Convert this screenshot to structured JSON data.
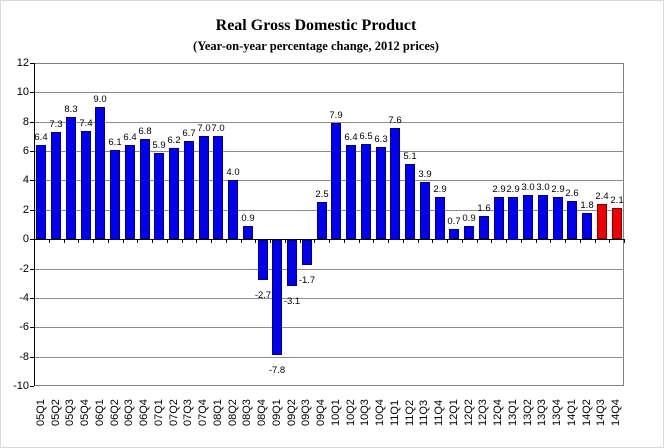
{
  "chart_data": {
    "type": "bar",
    "title": "Real Gross Domestic Product",
    "subtitle": "(Year-on-year percentage change, 2012 prices)",
    "categories": [
      "05Q1",
      "05Q2",
      "05Q3",
      "05Q4",
      "06Q1",
      "06Q2",
      "06Q3",
      "06Q4",
      "07Q1",
      "07Q2",
      "07Q3",
      "07Q4",
      "08Q1",
      "08Q2",
      "08Q3",
      "08Q4",
      "09Q1",
      "09Q2",
      "09Q3",
      "09Q4",
      "10Q1",
      "10Q2",
      "10Q3",
      "10Q4",
      "11Q1",
      "11Q2",
      "11Q3",
      "11Q4",
      "12Q1",
      "12Q2",
      "12Q3",
      "12Q4",
      "13Q1",
      "13Q2",
      "13Q3",
      "13Q4",
      "14Q1",
      "14Q2",
      "14Q3",
      "14Q4"
    ],
    "values": [
      6.4,
      7.3,
      8.3,
      7.4,
      9.0,
      6.1,
      6.4,
      6.8,
      5.9,
      6.2,
      6.7,
      7.0,
      7.0,
      4.0,
      0.9,
      -2.7,
      -7.8,
      -3.1,
      -1.7,
      2.5,
      7.9,
      6.4,
      6.5,
      6.3,
      7.6,
      5.1,
      3.9,
      2.9,
      0.7,
      0.9,
      1.6,
      2.9,
      2.9,
      3.0,
      3.0,
      2.9,
      2.6,
      1.8,
      2.4,
      2.1
    ],
    "value_labels": [
      "6.4",
      "7.3",
      "8.3",
      "7.4",
      "9.0",
      "6.1",
      "6.4",
      "6.8",
      "5.9",
      "6.2",
      "6.7",
      "7.0",
      "7.0",
      "4.0",
      "0.9",
      "-2.7",
      "-7.8",
      "-3.1",
      "-1.7",
      "2.5",
      "7.9",
      "6.4",
      "6.5",
      "6.3",
      "7.6",
      "5.1",
      "3.9",
      "2.9",
      "0.7",
      "0.9",
      "1.6",
      "2.9",
      "2.9",
      "3.0",
      "3.0",
      "2.9",
      "2.6",
      "1.8",
      "2.4",
      "2.1"
    ],
    "highlight_indices": [
      38,
      39
    ],
    "yticks": [
      12,
      10,
      8,
      6,
      4,
      2,
      0,
      -2,
      -4,
      -6,
      -8,
      -10
    ],
    "ylim": [
      -10,
      12
    ],
    "grid": true,
    "legend": "none",
    "xlabel": "",
    "ylabel": "",
    "colors": {
      "bar_fill": "#0000EE",
      "bar_border": "#000080",
      "highlight_fill": "#EE0000",
      "highlight_border": "#7F0000",
      "gridline": "#8c8c8c",
      "axis": "#000000",
      "plot_border": "#808080"
    }
  }
}
